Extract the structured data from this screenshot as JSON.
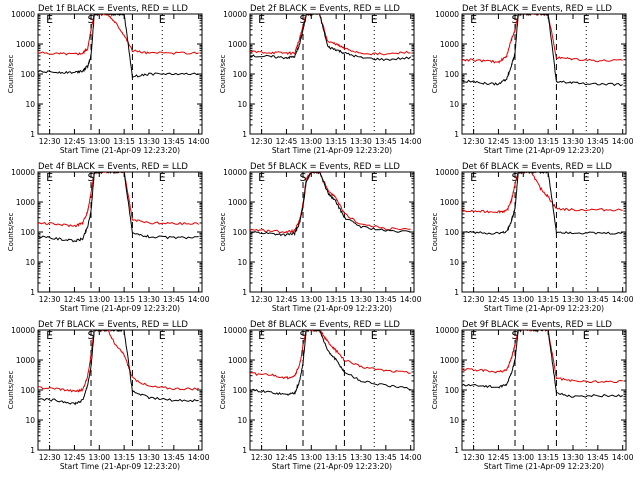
{
  "figure": {
    "background": "#ffffff",
    "events_color": "#000000",
    "lld_color": "#e00000"
  },
  "chart_data": [
    {
      "type": "line",
      "title": "Det 1f BLACK = Events, RED = LLD",
      "xlabel": "Start Time (21-Apr-09 12:23:20)",
      "ylabel": "Counts/sec",
      "yscale": "log",
      "ylim": [
        1,
        10000
      ],
      "x_ticks": [
        "12:30",
        "12:45",
        "13:00",
        "13:15",
        "13:30",
        "13:45",
        "14:00"
      ],
      "y_ticks": [
        "1",
        "10",
        "100",
        "1000",
        "10000"
      ],
      "markers": [
        {
          "label": "E",
          "style": "dotted",
          "x": "12:30"
        },
        {
          "label": "S",
          "style": "dashed",
          "x": "12:55"
        },
        {
          "label": "",
          "style": "dashed",
          "x": "13:20"
        },
        {
          "label": "E",
          "style": "dotted",
          "x": "13:38"
        }
      ],
      "x": [
        "12:23",
        "12:35",
        "12:45",
        "12:50",
        "12:53",
        "12:55",
        "12:57",
        "13:00",
        "13:05",
        "13:10",
        "13:15",
        "13:20",
        "13:30",
        "13:45",
        "14:00"
      ],
      "series": [
        {
          "name": "Events",
          "color": "black",
          "values": [
            120,
            115,
            112,
            130,
            180,
            400,
            10000,
            10000,
            10000,
            10000,
            10000,
            80,
            100,
            100,
            100
          ]
        },
        {
          "name": "LLD",
          "color": "red",
          "values": [
            500,
            480,
            470,
            500,
            700,
            3000,
            10000,
            10000,
            10000,
            5000,
            2000,
            600,
            500,
            500,
            500
          ]
        }
      ]
    },
    {
      "type": "line",
      "title": "Det 2f BLACK = Events, RED = LLD",
      "xlabel": "Start Time (21-Apr-09 12:23:20)",
      "ylabel": "Counts/sec",
      "yscale": "log",
      "ylim": [
        1,
        10000
      ],
      "x_ticks": [
        "12:30",
        "12:45",
        "13:00",
        "13:15",
        "13:30",
        "13:45",
        "14:00"
      ],
      "y_ticks": [
        "1",
        "10",
        "100",
        "1000",
        "10000"
      ],
      "markers": [
        {
          "label": "E",
          "style": "dotted",
          "x": "12:30"
        },
        {
          "label": "S",
          "style": "dashed",
          "x": "12:55"
        },
        {
          "label": "",
          "style": "dashed",
          "x": "13:20"
        },
        {
          "label": "E",
          "style": "dotted",
          "x": "13:38"
        }
      ],
      "x": [
        "12:23",
        "12:35",
        "12:45",
        "12:50",
        "12:53",
        "12:55",
        "12:57",
        "13:00",
        "13:05",
        "13:10",
        "13:15",
        "13:20",
        "13:30",
        "13:45",
        "14:00"
      ],
      "series": [
        {
          "name": "Events",
          "color": "black",
          "values": [
            400,
            380,
            350,
            380,
            1000,
            3000,
            10000,
            10000,
            10000,
            800,
            650,
            500,
            350,
            300,
            350
          ]
        },
        {
          "name": "LLD",
          "color": "red",
          "values": [
            550,
            520,
            500,
            500,
            1500,
            4000,
            10000,
            10000,
            10000,
            1200,
            1000,
            700,
            500,
            450,
            550
          ]
        }
      ]
    },
    {
      "type": "line",
      "title": "Det 3f BLACK = Events, RED = LLD",
      "xlabel": "Start Time (21-Apr-09 12:23:20)",
      "ylabel": "Counts/sec",
      "yscale": "log",
      "ylim": [
        1,
        10000
      ],
      "x_ticks": [
        "12:30",
        "12:45",
        "13:00",
        "13:15",
        "13:30",
        "13:45",
        "14:00"
      ],
      "y_ticks": [
        "1",
        "10",
        "100",
        "1000",
        "10000"
      ],
      "markers": [
        {
          "label": "E",
          "style": "dotted",
          "x": "12:30"
        },
        {
          "label": "S",
          "style": "dashed",
          "x": "12:55"
        },
        {
          "label": "",
          "style": "dashed",
          "x": "13:20"
        },
        {
          "label": "E",
          "style": "dotted",
          "x": "13:38"
        }
      ],
      "x": [
        "12:23",
        "12:35",
        "12:45",
        "12:50",
        "12:53",
        "12:55",
        "12:57",
        "13:00",
        "13:05",
        "13:10",
        "13:15",
        "13:20",
        "13:30",
        "13:45",
        "14:00"
      ],
      "series": [
        {
          "name": "Events",
          "color": "black",
          "values": [
            60,
            50,
            45,
            70,
            200,
            500,
            10000,
            10000,
            10000,
            10000,
            10000,
            55,
            50,
            45,
            45
          ]
        },
        {
          "name": "LLD",
          "color": "red",
          "values": [
            300,
            280,
            250,
            400,
            1500,
            3000,
            10000,
            10000,
            10000,
            10000,
            10000,
            350,
            320,
            280,
            280
          ]
        }
      ]
    },
    {
      "type": "line",
      "title": "Det 4f BLACK = Events, RED = LLD",
      "xlabel": "Start Time (21-Apr-09 12:23:20)",
      "ylabel": "Counts/sec",
      "yscale": "log",
      "ylim": [
        1,
        10000
      ],
      "x_ticks": [
        "12:30",
        "12:45",
        "13:00",
        "13:15",
        "13:30",
        "13:45",
        "14:00"
      ],
      "y_ticks": [
        "1",
        "10",
        "100",
        "1000",
        "10000"
      ],
      "markers": [
        {
          "label": "E",
          "style": "dotted",
          "x": "12:30"
        },
        {
          "label": "S",
          "style": "dashed",
          "x": "12:55"
        },
        {
          "label": "",
          "style": "dashed",
          "x": "13:20"
        },
        {
          "label": "E",
          "style": "dotted",
          "x": "13:38"
        }
      ],
      "x": [
        "12:23",
        "12:35",
        "12:45",
        "12:50",
        "12:53",
        "12:55",
        "12:57",
        "13:00",
        "13:05",
        "13:10",
        "13:15",
        "13:20",
        "13:30",
        "13:45",
        "14:00"
      ],
      "series": [
        {
          "name": "Events",
          "color": "black",
          "values": [
            70,
            60,
            50,
            60,
            150,
            500,
            10000,
            10000,
            10000,
            10000,
            10000,
            90,
            70,
            65,
            65
          ]
        },
        {
          "name": "LLD",
          "color": "red",
          "values": [
            200,
            180,
            160,
            200,
            500,
            2000,
            10000,
            10000,
            10000,
            10000,
            10000,
            250,
            200,
            190,
            190
          ]
        }
      ]
    },
    {
      "type": "line",
      "title": "Det 5f BLACK = Events, RED = LLD",
      "xlabel": "Start Time (21-Apr-09 12:23:20)",
      "ylabel": "Counts/sec",
      "yscale": "log",
      "ylim": [
        1,
        10000
      ],
      "x_ticks": [
        "12:30",
        "12:45",
        "13:00",
        "13:15",
        "13:30",
        "13:45",
        "14:00"
      ],
      "y_ticks": [
        "1",
        "10",
        "100",
        "1000",
        "10000"
      ],
      "markers": [
        {
          "label": "E",
          "style": "dotted",
          "x": "12:30"
        },
        {
          "label": "S",
          "style": "dashed",
          "x": "12:55"
        },
        {
          "label": "",
          "style": "dashed",
          "x": "13:20"
        },
        {
          "label": "E",
          "style": "dotted",
          "x": "13:38"
        }
      ],
      "x": [
        "12:23",
        "12:35",
        "12:45",
        "12:50",
        "12:53",
        "12:55",
        "12:57",
        "13:00",
        "13:05",
        "13:10",
        "13:15",
        "13:20",
        "13:30",
        "13:45",
        "14:00"
      ],
      "series": [
        {
          "name": "Events",
          "color": "black",
          "values": [
            100,
            90,
            80,
            90,
            200,
            700,
            5000,
            10000,
            10000,
            2000,
            1000,
            300,
            150,
            110,
            100
          ]
        },
        {
          "name": "LLD",
          "color": "red",
          "values": [
            120,
            110,
            100,
            110,
            250,
            900,
            6000,
            10000,
            10000,
            2500,
            1300,
            400,
            180,
            130,
            120
          ]
        }
      ]
    },
    {
      "type": "line",
      "title": "Det 6f BLACK = Events, RED = LLD",
      "xlabel": "Start Time (21-Apr-09 12:23:20)",
      "ylabel": "Counts/sec",
      "yscale": "log",
      "ylim": [
        1,
        10000
      ],
      "x_ticks": [
        "12:30",
        "12:45",
        "13:00",
        "13:15",
        "13:30",
        "13:45",
        "14:00"
      ],
      "y_ticks": [
        "1",
        "10",
        "100",
        "1000",
        "10000"
      ],
      "markers": [
        {
          "label": "E",
          "style": "dotted",
          "x": "12:30"
        },
        {
          "label": "S",
          "style": "dashed",
          "x": "12:55"
        },
        {
          "label": "",
          "style": "dashed",
          "x": "13:20"
        },
        {
          "label": "E",
          "style": "dotted",
          "x": "13:38"
        }
      ],
      "x": [
        "12:23",
        "12:35",
        "12:45",
        "12:50",
        "12:53",
        "12:55",
        "12:57",
        "13:00",
        "13:05",
        "13:10",
        "13:15",
        "13:20",
        "13:30",
        "13:45",
        "14:00"
      ],
      "series": [
        {
          "name": "Events",
          "color": "black",
          "values": [
            100,
            95,
            90,
            100,
            250,
            600,
            10000,
            10000,
            10000,
            10000,
            10000,
            100,
            95,
            90,
            90
          ]
        },
        {
          "name": "LLD",
          "color": "red",
          "values": [
            500,
            480,
            480,
            500,
            1200,
            4000,
            10000,
            10000,
            10000,
            3000,
            1500,
            600,
            550,
            550,
            550
          ]
        }
      ]
    },
    {
      "type": "line",
      "title": "Det 7f BLACK = Events, RED = LLD",
      "xlabel": "Start Time (21-Apr-09 12:23:20)",
      "ylabel": "Counts/sec",
      "yscale": "log",
      "ylim": [
        1,
        10000
      ],
      "x_ticks": [
        "12:30",
        "12:45",
        "13:00",
        "13:15",
        "13:30",
        "13:45",
        "14:00"
      ],
      "y_ticks": [
        "1",
        "10",
        "100",
        "1000",
        "10000"
      ],
      "markers": [
        {
          "label": "E",
          "style": "dotted",
          "x": "12:30"
        },
        {
          "label": "S",
          "style": "dashed",
          "x": "12:55"
        },
        {
          "label": "",
          "style": "dashed",
          "x": "13:20"
        },
        {
          "label": "E",
          "style": "dotted",
          "x": "13:38"
        }
      ],
      "x": [
        "12:23",
        "12:35",
        "12:45",
        "12:50",
        "12:53",
        "12:55",
        "12:57",
        "13:00",
        "13:05",
        "13:10",
        "13:15",
        "13:20",
        "13:30",
        "13:45",
        "14:00"
      ],
      "series": [
        {
          "name": "Events",
          "color": "black",
          "values": [
            50,
            45,
            35,
            45,
            150,
            600,
            10000,
            10000,
            10000,
            10000,
            10000,
            90,
            55,
            45,
            45
          ]
        },
        {
          "name": "LLD",
          "color": "red",
          "values": [
            120,
            110,
            90,
            100,
            300,
            1500,
            10000,
            10000,
            10000,
            3000,
            1500,
            250,
            130,
            110,
            110
          ]
        }
      ]
    },
    {
      "type": "line",
      "title": "Det 8f BLACK = Events, RED = LLD",
      "xlabel": "Start Time (21-Apr-09 12:23:20)",
      "ylabel": "Counts/sec",
      "yscale": "log",
      "ylim": [
        1,
        10000
      ],
      "x_ticks": [
        "12:30",
        "12:45",
        "13:00",
        "13:15",
        "13:30",
        "13:45",
        "14:00"
      ],
      "y_ticks": [
        "1",
        "10",
        "100",
        "1000",
        "10000"
      ],
      "markers": [
        {
          "label": "E",
          "style": "dotted",
          "x": "12:30"
        },
        {
          "label": "S",
          "style": "dashed",
          "x": "12:55"
        },
        {
          "label": "",
          "style": "dashed",
          "x": "13:20"
        },
        {
          "label": "E",
          "style": "dotted",
          "x": "13:38"
        }
      ],
      "x": [
        "12:23",
        "12:35",
        "12:45",
        "12:50",
        "12:53",
        "12:55",
        "12:57",
        "13:00",
        "13:05",
        "13:10",
        "13:15",
        "13:20",
        "13:30",
        "13:45",
        "14:00"
      ],
      "series": [
        {
          "name": "Events",
          "color": "black",
          "values": [
            100,
            85,
            70,
            80,
            200,
            800,
            10000,
            10000,
            10000,
            2000,
            1000,
            400,
            200,
            140,
            110
          ]
        },
        {
          "name": "LLD",
          "color": "red",
          "values": [
            350,
            320,
            250,
            300,
            700,
            3000,
            10000,
            10000,
            10000,
            4000,
            2000,
            1000,
            600,
            450,
            380
          ]
        }
      ]
    },
    {
      "type": "line",
      "title": "Det 9f BLACK = Events, RED = LLD",
      "xlabel": "Start Time (21-Apr-09 12:23:20)",
      "ylabel": "Counts/sec",
      "yscale": "log",
      "ylim": [
        1,
        10000
      ],
      "x_ticks": [
        "12:30",
        "12:45",
        "13:00",
        "13:15",
        "13:30",
        "13:45",
        "14:00"
      ],
      "y_ticks": [
        "1",
        "10",
        "100",
        "1000",
        "10000"
      ],
      "markers": [
        {
          "label": "E",
          "style": "dotted",
          "x": "12:30"
        },
        {
          "label": "S",
          "style": "dashed",
          "x": "12:55"
        },
        {
          "label": "",
          "style": "dashed",
          "x": "13:20"
        },
        {
          "label": "E",
          "style": "dotted",
          "x": "13:38"
        }
      ],
      "x": [
        "12:23",
        "12:35",
        "12:45",
        "12:50",
        "12:53",
        "12:55",
        "12:57",
        "13:00",
        "13:05",
        "13:10",
        "13:15",
        "13:20",
        "13:30",
        "13:45",
        "14:00"
      ],
      "series": [
        {
          "name": "Events",
          "color": "black",
          "values": [
            150,
            140,
            120,
            150,
            400,
            1000,
            10000,
            10000,
            10000,
            10000,
            10000,
            80,
            60,
            65,
            65
          ]
        },
        {
          "name": "LLD",
          "color": "red",
          "values": [
            500,
            450,
            400,
            450,
            1200,
            3500,
            10000,
            10000,
            10000,
            10000,
            10000,
            250,
            200,
            190,
            190
          ]
        }
      ]
    }
  ]
}
